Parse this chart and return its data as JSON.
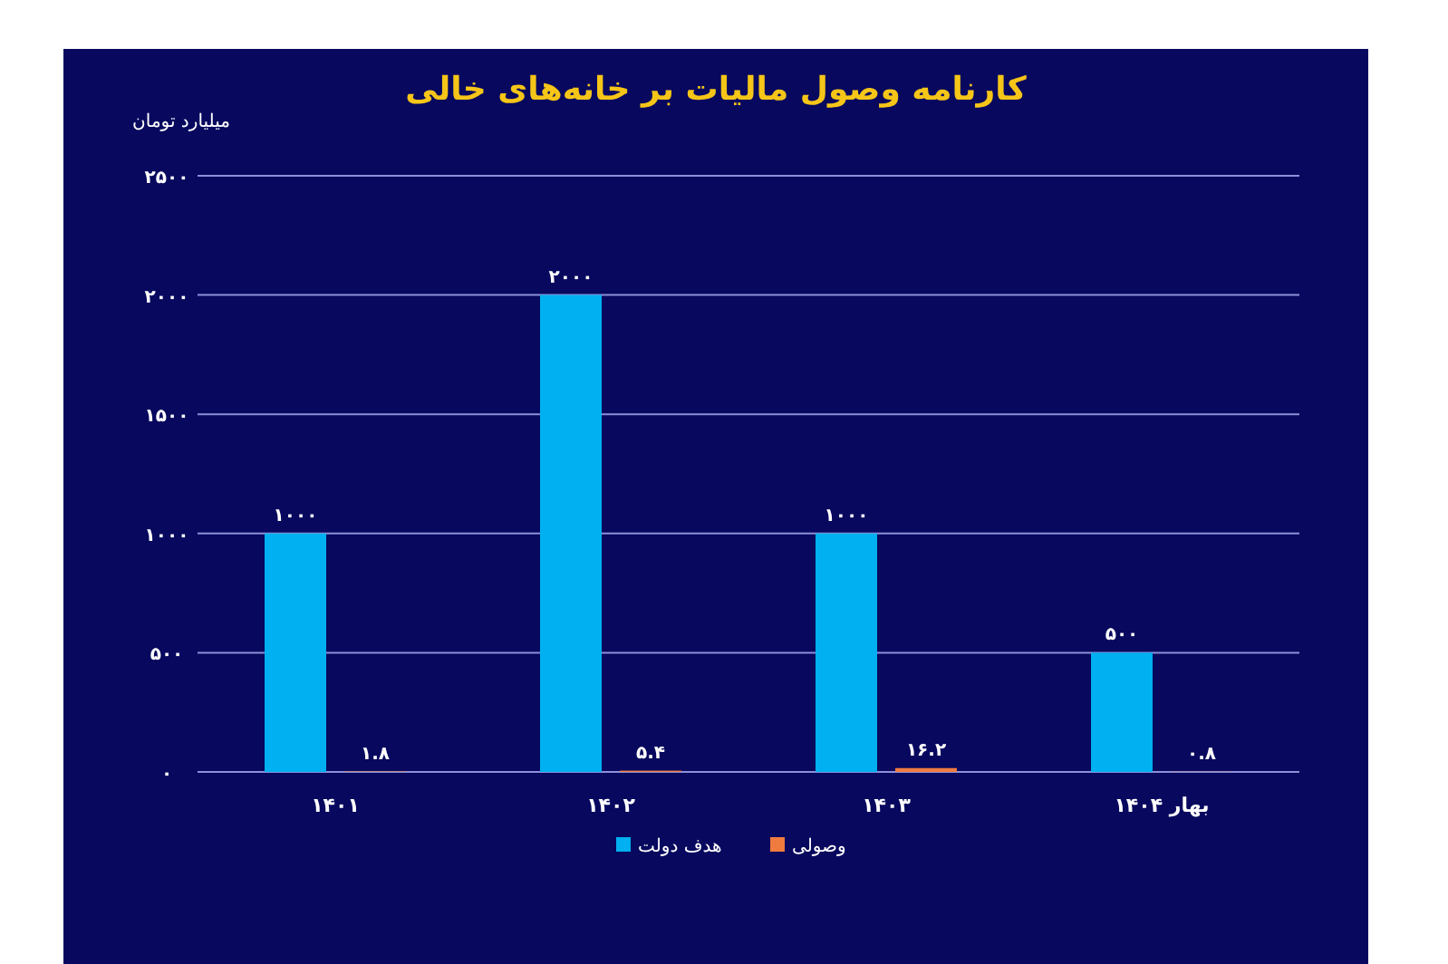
{
  "chart_data": {
    "type": "bar",
    "title": "کارنامه وصول مالیات بر خانه‌های خالی",
    "ylabel": "میلیارد تومان",
    "categories": [
      "۱۴۰۱",
      "۱۴۰۲",
      "۱۴۰۳",
      "بهار ۱۴۰۴"
    ],
    "series": [
      {
        "name": "هدف دولت",
        "color": "#00b0f0",
        "values": [
          1000,
          2000,
          1000,
          500
        ],
        "value_labels": [
          "۱۰۰۰",
          "۲۰۰۰",
          "۱۰۰۰",
          "۵۰۰"
        ]
      },
      {
        "name": "وصولی",
        "color": "#f07b3f",
        "values": [
          1.8,
          5.4,
          16.2,
          0.8
        ],
        "value_labels": [
          "۱.۸",
          "۵.۴",
          "۱۶.۲",
          "۰.۸"
        ]
      }
    ],
    "ylim": [
      0,
      2500
    ],
    "yticks": [
      {
        "value": 0,
        "label": "۰"
      },
      {
        "value": 500,
        "label": "۵۰۰"
      },
      {
        "value": 1000,
        "label": "۱۰۰۰"
      },
      {
        "value": 1500,
        "label": "۱۵۰۰"
      },
      {
        "value": 2000,
        "label": "۲۰۰۰"
      },
      {
        "value": 2500,
        "label": "۲۵۰۰"
      }
    ],
    "grid": "y",
    "legend": "bottom"
  }
}
